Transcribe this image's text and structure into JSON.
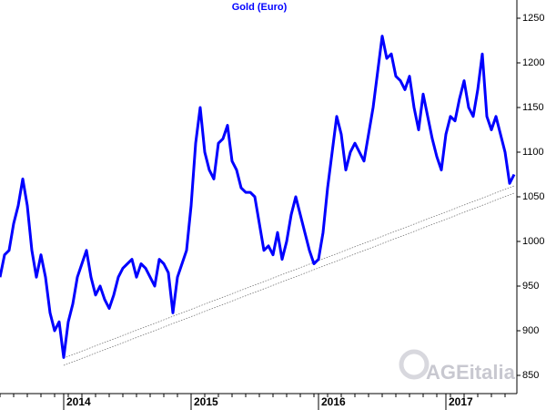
{
  "chart_data": {
    "type": "line",
    "title": "Gold (Euro)",
    "watermark": "AGEitalia",
    "categories": [
      null,
      null,
      null,
      null,
      null,
      null,
      null,
      null,
      null,
      null,
      null,
      null,
      null,
      null,
      "2014",
      null,
      null,
      null,
      null,
      null,
      null,
      null,
      null,
      null,
      null,
      null,
      null,
      null,
      null,
      null,
      null,
      null,
      null,
      null,
      null,
      null,
      null,
      null,
      null,
      null,
      null,
      null,
      "2015",
      null,
      null,
      null,
      null,
      null,
      null,
      null,
      null,
      null,
      null,
      null,
      null,
      null,
      null,
      null,
      null,
      null,
      null,
      null,
      null,
      null,
      null,
      null,
      null,
      null,
      null,
      null,
      "2016",
      null,
      null,
      null,
      null,
      null,
      null,
      null,
      null,
      null,
      null,
      null,
      null,
      null,
      null,
      null,
      null,
      null,
      null,
      null,
      null,
      null,
      null,
      null,
      null,
      null,
      null,
      null,
      "2017",
      null,
      null,
      null,
      null,
      null,
      null,
      null,
      null,
      null,
      null,
      null,
      null,
      null,
      null,
      null
    ],
    "series": [
      {
        "name": "Gold (Euro)",
        "color": "#0000ff",
        "values": [
          960,
          985,
          990,
          1020,
          1040,
          1070,
          1040,
          990,
          960,
          985,
          960,
          920,
          900,
          910,
          870,
          910,
          930,
          960,
          975,
          990,
          960,
          940,
          950,
          935,
          925,
          940,
          960,
          970,
          975,
          980,
          960,
          975,
          970,
          960,
          950,
          980,
          975,
          965,
          920,
          960,
          975,
          990,
          1040,
          1110,
          1150,
          1100,
          1080,
          1070,
          1110,
          1115,
          1130,
          1090,
          1080,
          1060,
          1055,
          1055,
          1050,
          1020,
          990,
          995,
          985,
          1010,
          980,
          1000,
          1030,
          1050,
          1030,
          1010,
          990,
          975,
          980,
          1010,
          1060,
          1100,
          1140,
          1120,
          1080,
          1100,
          1110,
          1100,
          1090,
          1120,
          1150,
          1190,
          1230,
          1205,
          1210,
          1185,
          1180,
          1170,
          1185,
          1150,
          1125,
          1165,
          1140,
          1115,
          1095,
          1080,
          1120,
          1140,
          1135,
          1160,
          1180,
          1150,
          1140,
          1170,
          1210,
          1140,
          1125,
          1140,
          1120,
          1100,
          1065,
          1075
        ]
      }
    ],
    "ylim": [
      850,
      1250
    ],
    "yticks": [
      850,
      900,
      950,
      1000,
      1050,
      1100,
      1150,
      1200,
      1250
    ]
  }
}
